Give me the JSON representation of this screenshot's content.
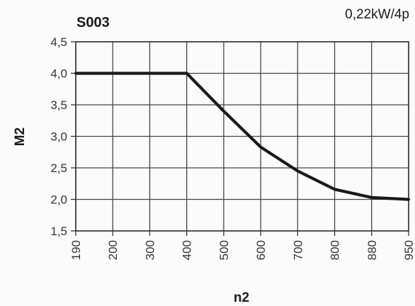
{
  "chart_data": {
    "type": "line",
    "title": "S003",
    "subtitle": "0,22kW/4p",
    "xlabel": "n2",
    "ylabel": "M2",
    "categories": [
      "190",
      "200",
      "300",
      "400",
      "500",
      "600",
      "700",
      "800",
      "880",
      "950"
    ],
    "series": [
      {
        "values": [
          4.0,
          4.0,
          4.0,
          4.0,
          3.4,
          2.83,
          2.45,
          2.16,
          2.03,
          2.0
        ]
      }
    ],
    "yticks": [
      "1,5",
      "2,0",
      "2,5",
      "3,0",
      "3,5",
      "4,0",
      "4,5"
    ],
    "ytick_values": [
      1.5,
      2.0,
      2.5,
      3.0,
      3.5,
      4.0,
      4.5
    ],
    "ylim": [
      1.5,
      4.5
    ],
    "grid": true,
    "x_scale": "categorical-evenly-spaced",
    "line_color": "#1a1a1a",
    "grid_color": "#444444"
  }
}
